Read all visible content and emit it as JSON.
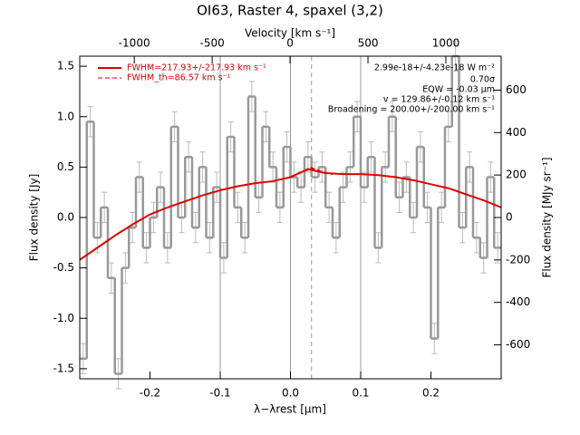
{
  "chart_data": {
    "type": "step",
    "title": "OI63, Raster 4, spaxel (3,2)",
    "xlabel": "λ−λrest [μm]",
    "ylabel": "Flux density [Jy]",
    "x2label": "Velocity [km s⁻¹]",
    "y2label": "Flux density [MJy sr⁻¹]",
    "xlim": [
      -0.3,
      0.3
    ],
    "xticks": [
      -0.2,
      -0.1,
      0.0,
      0.1,
      0.2
    ],
    "ylim": [
      -1.6,
      1.6
    ],
    "yticks": [
      -1.5,
      -1.0,
      -0.5,
      0.0,
      0.5,
      1.0,
      1.5
    ],
    "x2lim": [
      -1350,
      1355
    ],
    "x2ticks": [
      -1000,
      -500,
      0,
      500,
      1000
    ],
    "y2lim": [
      -760,
      760
    ],
    "y2ticks": [
      -600,
      -400,
      -200,
      0,
      200,
      400,
      600
    ],
    "color": "#999999",
    "error_color": "#bbbbbb",
    "x": [
      -0.295,
      -0.285,
      -0.275,
      -0.265,
      -0.255,
      -0.245,
      -0.235,
      -0.225,
      -0.215,
      -0.205,
      -0.195,
      -0.185,
      -0.175,
      -0.165,
      -0.155,
      -0.145,
      -0.135,
      -0.125,
      -0.115,
      -0.105,
      -0.095,
      -0.085,
      -0.075,
      -0.065,
      -0.055,
      -0.045,
      -0.035,
      -0.025,
      -0.015,
      -0.005,
      0.005,
      0.015,
      0.025,
      0.035,
      0.045,
      0.055,
      0.065,
      0.075,
      0.085,
      0.095,
      0.105,
      0.115,
      0.125,
      0.135,
      0.145,
      0.155,
      0.165,
      0.175,
      0.185,
      0.195,
      0.205,
      0.215,
      0.225,
      0.235,
      0.245,
      0.255,
      0.265,
      0.275,
      0.285,
      0.295
    ],
    "values": [
      -1.4,
      0.95,
      -0.2,
      0.1,
      -0.6,
      -1.55,
      -0.5,
      -0.1,
      0.4,
      -0.3,
      0.0,
      0.3,
      -0.3,
      0.9,
      0.0,
      0.6,
      -0.1,
      0.5,
      -0.2,
      0.3,
      -0.4,
      0.8,
      0.1,
      -0.2,
      1.2,
      0.2,
      0.9,
      0.5,
      0.1,
      0.7,
      0.4,
      0.3,
      0.6,
      0.4,
      0.5,
      0.1,
      -0.2,
      0.3,
      0.5,
      1.0,
      0.3,
      0.6,
      -0.3,
      0.5,
      1.0,
      0.2,
      0.4,
      0.0,
      0.7,
      0.1,
      -1.2,
      0.1,
      0.9,
      1.6,
      -0.1,
      0.5,
      -0.2,
      -0.4,
      0.4,
      -0.3
    ],
    "errors": [
      0.15,
      0.15,
      0.15,
      0.15,
      0.15,
      0.15,
      0.15,
      0.15,
      0.15,
      0.15,
      0.15,
      0.15,
      0.15,
      0.15,
      0.15,
      0.15,
      0.15,
      0.15,
      0.15,
      0.15,
      0.15,
      0.15,
      0.15,
      0.15,
      0.15,
      0.15,
      0.15,
      0.15,
      0.15,
      0.15,
      0.15,
      0.15,
      0.15,
      0.15,
      0.15,
      0.15,
      0.15,
      0.15,
      0.15,
      0.15,
      0.15,
      0.15,
      0.15,
      0.15,
      0.15,
      0.15,
      0.15,
      0.15,
      0.15,
      0.15,
      0.15,
      0.15,
      0.15,
      0.15,
      0.15,
      0.15,
      0.15,
      0.15,
      0.15,
      0.15
    ],
    "series": [
      {
        "name": "FWHM=217.93+/-217.93 km s⁻¹",
        "color": "#e00000",
        "dash": "solid",
        "x": [
          -0.3,
          -0.275,
          -0.25,
          -0.225,
          -0.2,
          -0.175,
          -0.15,
          -0.125,
          -0.1,
          -0.075,
          -0.05,
          -0.025,
          0.0,
          0.025,
          0.05,
          0.075,
          0.1,
          0.125,
          0.15,
          0.175,
          0.2,
          0.225,
          0.25,
          0.275,
          0.3
        ],
        "values": [
          -0.42,
          -0.3,
          -0.18,
          -0.07,
          0.03,
          0.1,
          0.16,
          0.22,
          0.27,
          0.31,
          0.34,
          0.36,
          0.4,
          0.48,
          0.44,
          0.43,
          0.43,
          0.42,
          0.4,
          0.37,
          0.33,
          0.29,
          0.23,
          0.17,
          0.1
        ]
      },
      {
        "name": "FWHM_th=86.57 km s⁻¹",
        "color": "#e00000",
        "dash": "dashed",
        "x": [
          0.0,
          0.015,
          0.03,
          0.045,
          0.06
        ],
        "values": [
          0.4,
          0.45,
          0.49,
          0.45,
          0.43
        ]
      }
    ],
    "reference_lines": [
      {
        "x": -0.1,
        "style": "solid"
      },
      {
        "x": 0.0,
        "style": "solid"
      },
      {
        "x": 0.1,
        "style": "solid"
      },
      {
        "x": 0.03,
        "style": "dashed"
      }
    ],
    "annotations": [
      "2.99e-18+/-4.23e-18 W m⁻²",
      "0.70σ",
      "EQW = -0.03 μm",
      "v = 129.86+/-0.12 km s⁻¹",
      "Broadening = 200.00+/-200.00 km s⁻¹"
    ]
  }
}
